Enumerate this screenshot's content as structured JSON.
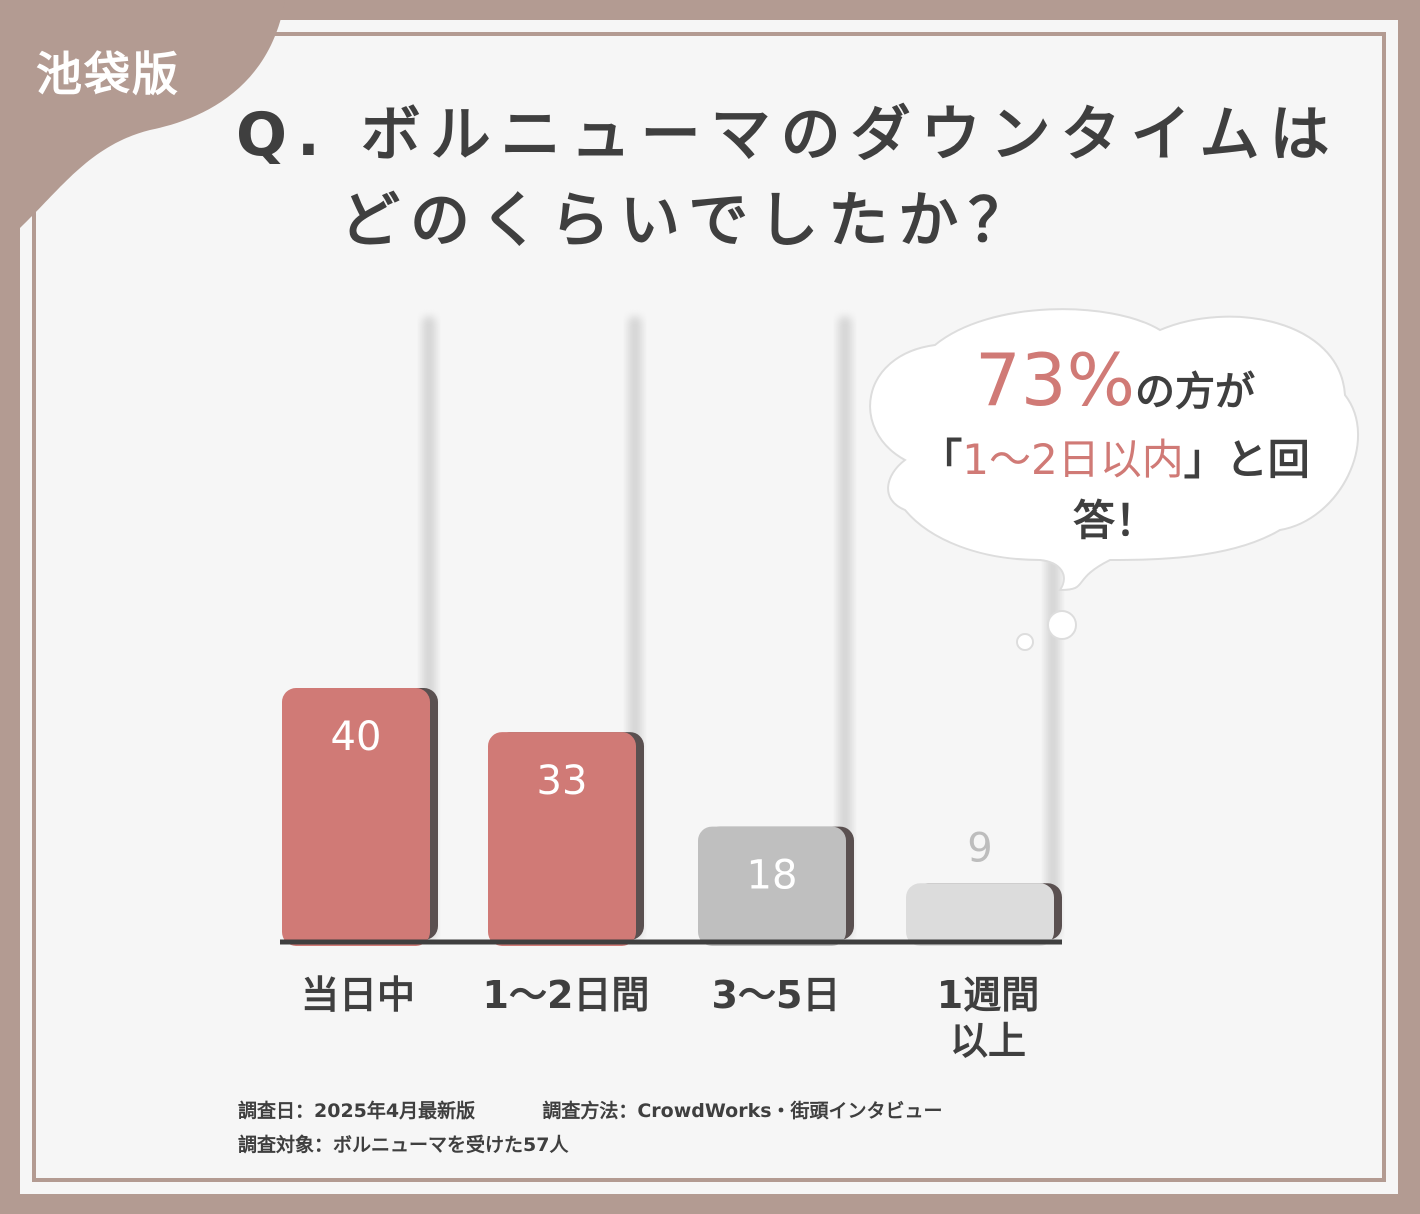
{
  "badge": "池袋版",
  "question": {
    "line1": "Q. ボルニューマのダウンタイムは",
    "line2": "どのくらいでしたか？"
  },
  "callout": {
    "percent": "73%",
    "line1_suffix": "の方が",
    "line2_open": "「",
    "line2_highlight": "1〜2日以内",
    "line2_close": "」と回答！"
  },
  "chart_data": {
    "type": "bar",
    "categories": [
      "当日中",
      "1〜2日間",
      "3〜5日",
      "1週間以上"
    ],
    "values": [
      40,
      33,
      18,
      9
    ],
    "ylim": [
      0,
      100
    ],
    "bar_colors": [
      "#d07a76",
      "#d07a76",
      "#bfbfbf",
      "#dcdcdc"
    ],
    "label_colors": [
      "#ffffff",
      "#ffffff",
      "#ffffff",
      "#bdbdbd"
    ]
  },
  "category_labels": {
    "c1": "当日中",
    "c2": "1〜2日間",
    "c3": "3〜5日",
    "c4a": "1週間",
    "c4b": "以上"
  },
  "footer": {
    "survey_date": "調査日：2025年4月最新版",
    "survey_method": "調査方法：CrowdWorks・街頭インタビュー",
    "survey_target": "調査対象：ボルニューマを受けた57人"
  },
  "colors": {
    "frame": "#b39b92",
    "accent": "#d07a76",
    "text": "#3f3f3f"
  }
}
